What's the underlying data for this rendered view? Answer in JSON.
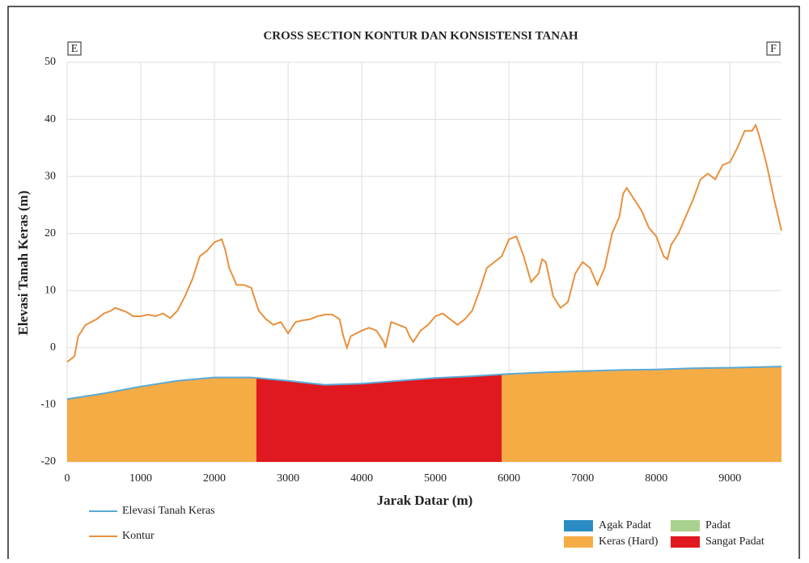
{
  "chart_data": {
    "type": "line",
    "title": "CROSS SECTION KONTUR DAN KONSISTENSI TANAH",
    "xlabel": "Jarak Datar (m)",
    "ylabel": "Elevasi Tanah Keras (m)",
    "corner_labels": [
      "E",
      "F"
    ],
    "xlim": [
      0,
      9700
    ],
    "ylim": [
      -20,
      50
    ],
    "xticks": [
      0,
      1000,
      2000,
      3000,
      4000,
      5000,
      6000,
      7000,
      8000,
      9000
    ],
    "yticks": [
      -20,
      -10,
      0,
      10,
      20,
      30,
      40,
      50
    ],
    "grid": true,
    "series": [
      {
        "name": "Elevasi Tanah Keras",
        "color": "#5aa9d6",
        "x": [
          0,
          500,
          1000,
          1500,
          2000,
          2500,
          3000,
          3500,
          4000,
          4500,
          5000,
          5500,
          6000,
          6500,
          7000,
          7500,
          8000,
          8500,
          9000,
          9700
        ],
        "values": [
          -9,
          -8,
          -6.8,
          -5.8,
          -5.2,
          -5.2,
          -5.8,
          -6.5,
          -6.3,
          -5.8,
          -5.3,
          -5,
          -4.6,
          -4.3,
          -4.1,
          -3.9,
          -3.8,
          -3.6,
          -3.5,
          -3.3
        ]
      },
      {
        "name": "Kontur",
        "color": "#e8913e",
        "x": [
          0,
          100,
          150,
          250,
          400,
          500,
          600,
          650,
          800,
          900,
          1000,
          1100,
          1200,
          1300,
          1400,
          1500,
          1600,
          1700,
          1800,
          1900,
          2000,
          2100,
          2150,
          2200,
          2300,
          2400,
          2500,
          2600,
          2700,
          2800,
          2900,
          3000,
          3100,
          3200,
          3300,
          3400,
          3500,
          3600,
          3700,
          3750,
          3800,
          3850,
          4000,
          4100,
          4200,
          4300,
          4320,
          4400,
          4500,
          4600,
          4650,
          4700,
          4800,
          4900,
          5000,
          5100,
          5200,
          5300,
          5400,
          5500,
          5600,
          5700,
          5800,
          5900,
          6000,
          6100,
          6200,
          6300,
          6400,
          6450,
          6500,
          6550,
          6600,
          6700,
          6800,
          6900,
          7000,
          7100,
          7200,
          7300,
          7400,
          7500,
          7550,
          7600,
          7700,
          7800,
          7900,
          8000,
          8100,
          8150,
          8200,
          8300,
          8400,
          8500,
          8600,
          8700,
          8800,
          8900,
          9000,
          9100,
          9200,
          9300,
          9350,
          9400,
          9500,
          9600,
          9700
        ],
        "values": [
          -2.5,
          -1.5,
          2,
          4,
          5,
          6,
          6.5,
          7,
          6.3,
          5.5,
          5.5,
          5.8,
          5.5,
          6,
          5.2,
          6.5,
          9,
          12,
          16,
          17,
          18.5,
          19,
          17,
          14,
          11,
          11,
          10.5,
          6.5,
          5,
          4,
          4.5,
          2.5,
          4.5,
          4.8,
          5,
          5.5,
          5.8,
          5.8,
          5,
          2,
          0,
          2,
          3,
          3.5,
          3,
          1,
          0,
          4.5,
          4,
          3.5,
          2,
          1,
          3,
          4,
          5.5,
          6,
          5,
          4,
          5,
          6.5,
          10,
          14,
          15,
          16,
          19,
          19.5,
          16,
          11.5,
          13,
          15.5,
          15,
          12,
          9,
          7,
          8,
          13,
          15,
          14,
          11,
          14,
          20,
          23,
          27,
          28,
          26,
          24,
          21,
          19.5,
          16,
          15.5,
          18,
          20,
          23,
          26,
          29.5,
          30.5,
          29.5,
          32,
          32.5,
          35,
          38,
          38,
          39,
          37,
          32,
          26,
          20.5
        ]
      }
    ],
    "soil_classes": [
      {
        "name": "Agak Padat",
        "color": "#2b8cc4",
        "ranges": []
      },
      {
        "name": "Keras (Hard)",
        "color": "#f5ac45",
        "ranges": [
          [
            0,
            2570
          ],
          [
            5900,
            9700
          ]
        ]
      },
      {
        "name": "Padat",
        "color": "#a9d18e",
        "ranges": []
      },
      {
        "name": "Sangat Padat",
        "color": "#e0181f",
        "ranges": [
          [
            2570,
            5900
          ]
        ]
      }
    ]
  }
}
